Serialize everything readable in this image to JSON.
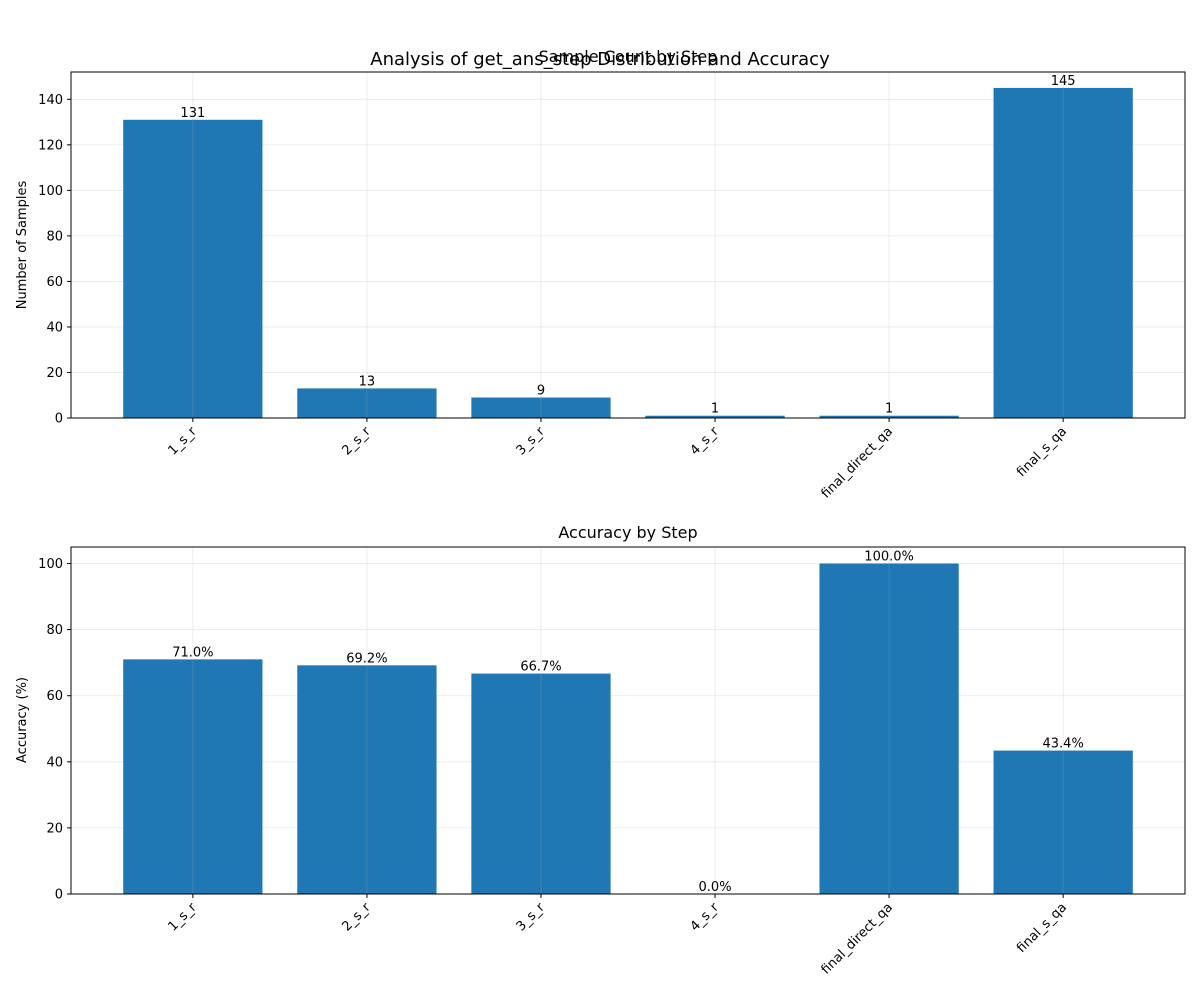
{
  "figure": {
    "suptitle": "Analysis of get_ans_step Distribution and Accuracy"
  },
  "chart_data": [
    {
      "type": "bar",
      "title": "Sample Count by Step",
      "xlabel": "",
      "ylabel": "Number of Samples",
      "categories": [
        "1_s_r",
        "2_s_r",
        "3_s_r",
        "4_s_r",
        "final_direct_qa",
        "final_s_qa"
      ],
      "values": [
        131,
        13,
        9,
        1,
        1,
        145
      ],
      "value_labels": [
        "131",
        "13",
        "9",
        "1",
        "1",
        "145"
      ],
      "ylim": [
        0,
        152
      ],
      "yticks": [
        0,
        20,
        40,
        60,
        80,
        100,
        120,
        140
      ],
      "grid": true,
      "bar_color": "#1f77b4"
    },
    {
      "type": "bar",
      "title": "Accuracy by Step",
      "xlabel": "",
      "ylabel": "Accuracy (%)",
      "categories": [
        "1_s_r",
        "2_s_r",
        "3_s_r",
        "4_s_r",
        "final_direct_qa",
        "final_s_qa"
      ],
      "values": [
        71.0,
        69.2,
        66.7,
        0.0,
        100.0,
        43.4
      ],
      "value_labels": [
        "71.0%",
        "69.2%",
        "66.7%",
        "0.0%",
        "100.0%",
        "43.4%"
      ],
      "ylim": [
        0,
        105
      ],
      "yticks": [
        0,
        20,
        40,
        60,
        80,
        100
      ],
      "grid": true,
      "bar_color": "#1f77b4"
    }
  ]
}
